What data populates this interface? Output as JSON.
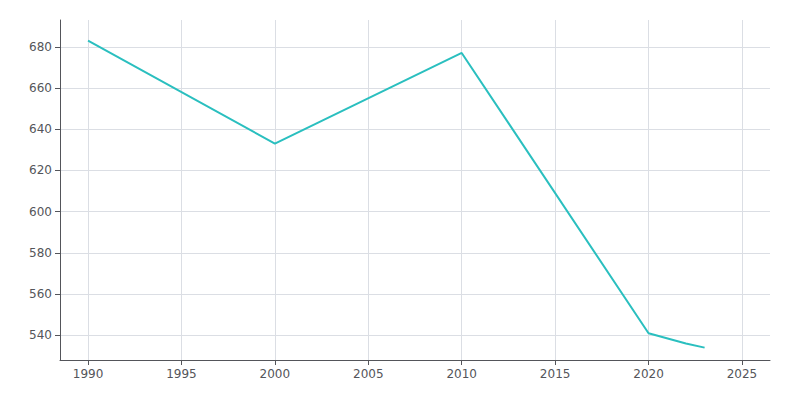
{
  "chart_data": {
    "type": "line",
    "x": [
      1990,
      2000,
      2010,
      2020,
      2022,
      2023
    ],
    "values": [
      683,
      633,
      677,
      541,
      536,
      534
    ],
    "color": "#2abfbf",
    "xlim": [
      1988.5,
      2026.5
    ],
    "xticks": [
      1990,
      1995,
      2000,
      2005,
      2010,
      2015,
      2020,
      2025
    ],
    "ylim": [
      528,
      693
    ],
    "yticks": [
      540,
      560,
      580,
      600,
      620,
      640,
      660,
      680
    ],
    "grid": true
  }
}
